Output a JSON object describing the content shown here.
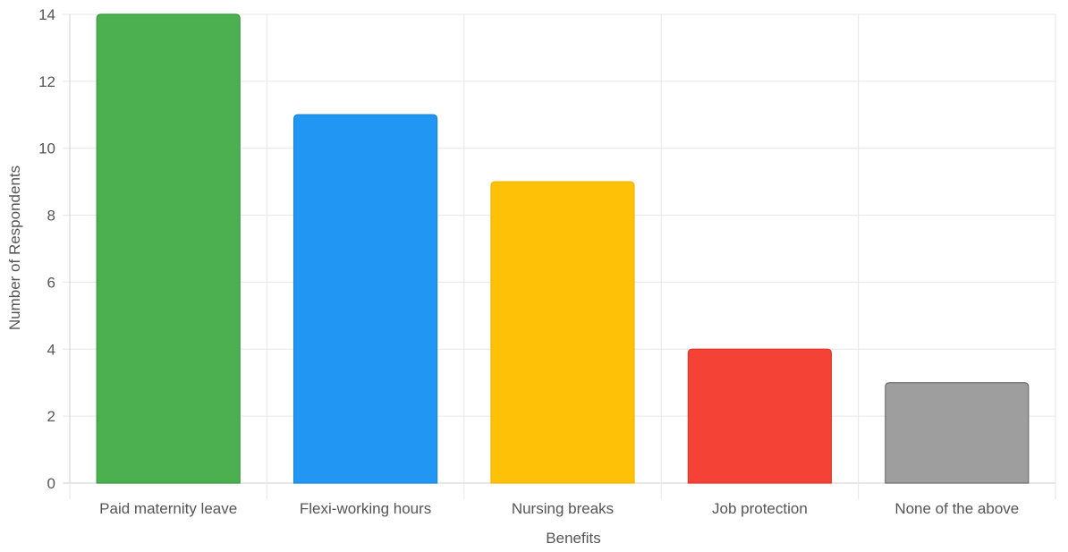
{
  "chart_data": {
    "type": "bar",
    "title": "",
    "xlabel": "Benefits",
    "ylabel": "Number of Respondents",
    "categories": [
      "Paid maternity leave",
      "Flexi-working hours",
      "Nursing breaks",
      "Job protection",
      "None of the above"
    ],
    "values": [
      14,
      11,
      9,
      4,
      3
    ],
    "colors": [
      "#4caf50",
      "#2196f3",
      "#ffc107",
      "#f44336",
      "#9e9e9e"
    ],
    "border_colors": [
      "#3a9a3e",
      "#1a85d8",
      "#f0b400",
      "#dd3a2d",
      "#6f6f6f"
    ],
    "ylim": [
      0,
      14
    ],
    "yticks": [
      0,
      2,
      4,
      6,
      8,
      10,
      12,
      14
    ],
    "grid": true,
    "legend": "none"
  }
}
